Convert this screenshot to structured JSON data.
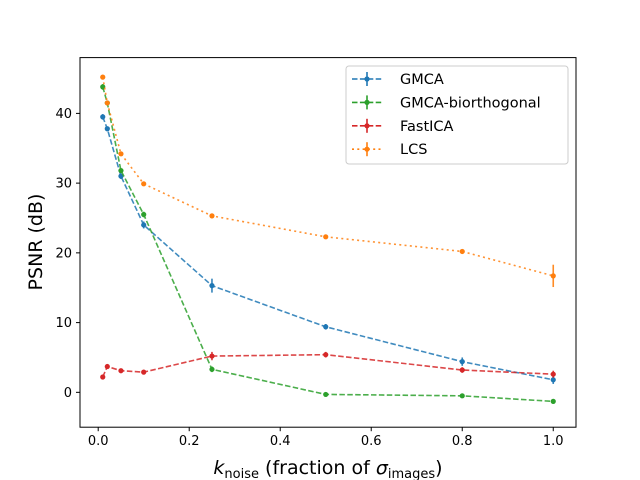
{
  "chart_data": {
    "type": "line",
    "xlabel_main": "k",
    "xlabel_sub": "noise",
    "xlabel_rest": " (fraction of ",
    "xlabel_sigma": "σ",
    "xlabel_sigma_sub": "images",
    "xlabel_close": ")",
    "ylabel": "PSNR (dB)",
    "xlim": [
      -0.04,
      1.05
    ],
    "ylim": [
      -5,
      48
    ],
    "xticks": [
      0.0,
      0.2,
      0.4,
      0.6,
      0.8,
      1.0
    ],
    "xtick_labels": [
      "0.0",
      "0.2",
      "0.4",
      "0.6",
      "0.8",
      "1.0"
    ],
    "yticks": [
      0,
      10,
      20,
      30,
      40
    ],
    "ytick_labels": [
      "0",
      "10",
      "20",
      "30",
      "40"
    ],
    "legend_position": "top-right",
    "x": [
      0.01,
      0.02,
      0.05,
      0.1,
      0.25,
      0.5,
      0.8,
      1.0
    ],
    "series": [
      {
        "name": "GMCA",
        "color": "#1f77b4",
        "dash": "dashed",
        "values": [
          39.5,
          37.8,
          31.0,
          24.0,
          15.3,
          9.4,
          4.4,
          1.8
        ],
        "errors": [
          0.4,
          0.3,
          0.4,
          0.5,
          1.0,
          0.4,
          0.6,
          0.6
        ]
      },
      {
        "name": "GMCA-biorthogonal",
        "color": "#2ca02c",
        "dash": "dashed",
        "values": [
          43.8,
          41.5,
          31.8,
          25.5,
          3.3,
          -0.3,
          -0.5,
          -1.3
        ],
        "errors": [
          0.4,
          0.3,
          0.3,
          0.4,
          0.4,
          0.2,
          0.2,
          0.2
        ]
      },
      {
        "name": "FastICA",
        "color": "#d62728",
        "dash": "dashed",
        "values": [
          2.2,
          3.7,
          3.1,
          2.9,
          5.2,
          5.4,
          3.2,
          2.6
        ],
        "errors": [
          0.2,
          0.3,
          0.2,
          0.2,
          0.6,
          0.4,
          0.4,
          0.5
        ]
      },
      {
        "name": "LCS",
        "color": "#ff7f0e",
        "dash": "dotted",
        "values": [
          45.2,
          41.5,
          34.2,
          29.9,
          25.3,
          22.3,
          20.2,
          16.7
        ],
        "errors": [
          0.3,
          0.3,
          0.2,
          0.2,
          0.2,
          0.3,
          0.2,
          1.6
        ]
      }
    ]
  }
}
